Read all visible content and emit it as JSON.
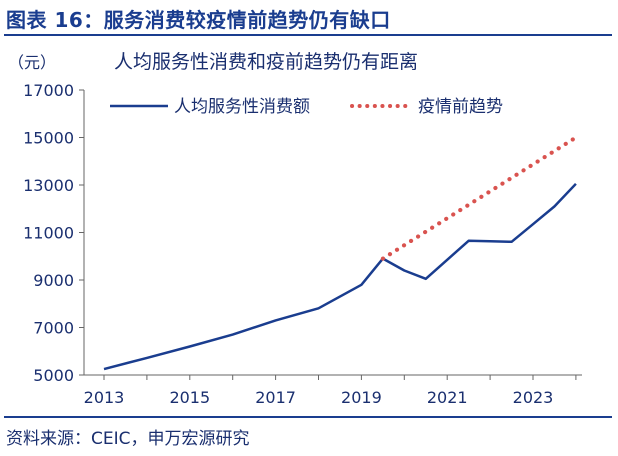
{
  "figure": {
    "title": "图表 16：服务消费较疫情前趋势仍有缺口",
    "source": "资料来源：CEIC，申万宏源研究"
  },
  "chart_data": {
    "type": "line",
    "title": "人均服务性消费和疫前趋势仍有距离",
    "ylabel": "（元）",
    "xlabel": "",
    "ylim": [
      5000,
      17000
    ],
    "xlim": [
      2013,
      2024.2
    ],
    "yticks": [
      5000,
      7000,
      9000,
      11000,
      13000,
      15000,
      17000
    ],
    "xticks": [
      "2013",
      "2015",
      "2017",
      "2019",
      "2021",
      "2023"
    ],
    "grid": false,
    "legend": "top",
    "series": [
      {
        "name": "人均服务性消费额",
        "style": "solid",
        "color": "#1a3d8f",
        "x": [
          2013.0,
          2014.0,
          2015.0,
          2016.0,
          2017.0,
          2018.0,
          2019.0,
          2019.5,
          2020.0,
          2020.5,
          2021.0,
          2021.5,
          2022.0,
          2022.5,
          2023.0,
          2023.5,
          2024.0
        ],
        "values": [
          5250,
          5720,
          6200,
          6700,
          7300,
          7810,
          8800,
          9900,
          9400,
          9050,
          9850,
          10650,
          10630,
          10610,
          11350,
          12100,
          13050
        ]
      },
      {
        "name": "疫情前趋势",
        "style": "dotted",
        "color": "#d9534f",
        "x": [
          2019.5,
          2024.0
        ],
        "values": [
          9900,
          15000
        ]
      }
    ]
  }
}
